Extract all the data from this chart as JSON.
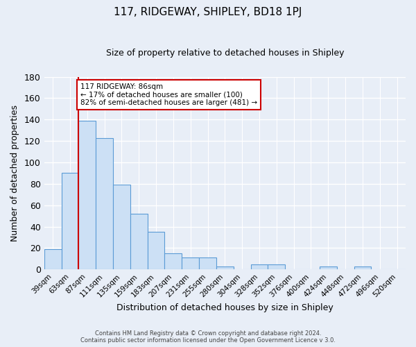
{
  "title": "117, RIDGEWAY, SHIPLEY, BD18 1PJ",
  "subtitle": "Size of property relative to detached houses in Shipley",
  "xlabel": "Distribution of detached houses by size in Shipley",
  "ylabel": "Number of detached properties",
  "bar_labels": [
    "39sqm",
    "63sqm",
    "87sqm",
    "111sqm",
    "135sqm",
    "159sqm",
    "183sqm",
    "207sqm",
    "231sqm",
    "255sqm",
    "280sqm",
    "304sqm",
    "328sqm",
    "352sqm",
    "376sqm",
    "400sqm",
    "424sqm",
    "448sqm",
    "472sqm",
    "496sqm",
    "520sqm"
  ],
  "bar_values": [
    19,
    90,
    139,
    123,
    79,
    52,
    35,
    15,
    11,
    11,
    3,
    0,
    5,
    5,
    0,
    0,
    3,
    0,
    3,
    0,
    0
  ],
  "bar_color": "#cce0f5",
  "bar_edge_color": "#5b9bd5",
  "background_color": "#e8eef7",
  "grid_color": "#ffffff",
  "ylim": [
    0,
    180
  ],
  "yticks": [
    0,
    20,
    40,
    60,
    80,
    100,
    120,
    140,
    160,
    180
  ],
  "property_line_color": "#cc0000",
  "annotation_title": "117 RIDGEWAY: 86sqm",
  "annotation_line1": "← 17% of detached houses are smaller (100)",
  "annotation_line2": "82% of semi-detached houses are larger (481) →",
  "annotation_box_color": "#ffffff",
  "annotation_box_edge": "#cc0000",
  "footer1": "Contains HM Land Registry data © Crown copyright and database right 2024.",
  "footer2": "Contains public sector information licensed under the Open Government Licence v 3.0."
}
